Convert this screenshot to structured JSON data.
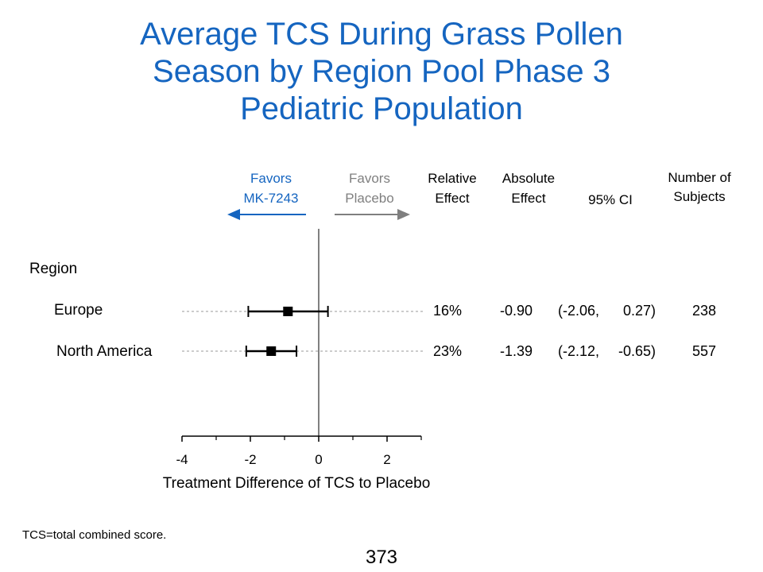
{
  "title_lines": [
    "Average TCS During Grass Pollen",
    "Season by Region Pool Phase 3",
    "Pediatric Population"
  ],
  "headers": {
    "favors_left": [
      "Favors",
      "MK-7243"
    ],
    "favors_right": [
      "Favors",
      "Placebo"
    ],
    "relative_effect": [
      "Relative",
      "Effect"
    ],
    "absolute_effect": [
      "Absolute",
      "Effect"
    ],
    "ci": "95% CI",
    "n_subjects": [
      "Number of",
      "Subjects"
    ]
  },
  "colors": {
    "title": "#1565c0",
    "favors_left": "#1565c0",
    "favors_right": "#7f7f7f",
    "markers": "#000000",
    "axis": "#000000",
    "reference_line": "#808080"
  },
  "chart_data": {
    "type": "forest",
    "group_label": "Region",
    "xlabel": "Treatment Difference of TCS to Placebo",
    "xlim": [
      -4,
      3
    ],
    "xticks": [
      -4,
      -2,
      0,
      2
    ],
    "xtick_labels": [
      "-4",
      "-2",
      "0",
      "2"
    ],
    "minor_ticks": [
      -3,
      -1,
      1,
      3
    ],
    "reference_line_x": 0,
    "rows": [
      {
        "label": "Europe",
        "estimate": -0.9,
        "ci_low": -2.06,
        "ci_high": 0.27,
        "relative": "16%",
        "absolute": "-0.90",
        "ci_low_text": "(-2.06,",
        "ci_high_text": "0.27)",
        "n": "238"
      },
      {
        "label": "North America",
        "estimate": -1.39,
        "ci_low": -2.12,
        "ci_high": -0.65,
        "relative": "23%",
        "absolute": "-1.39",
        "ci_low_text": "(-2.12,",
        "ci_high_text": "-0.65)",
        "n": "557"
      }
    ]
  },
  "footnote": "TCS=total combined score.",
  "page_number": "373"
}
